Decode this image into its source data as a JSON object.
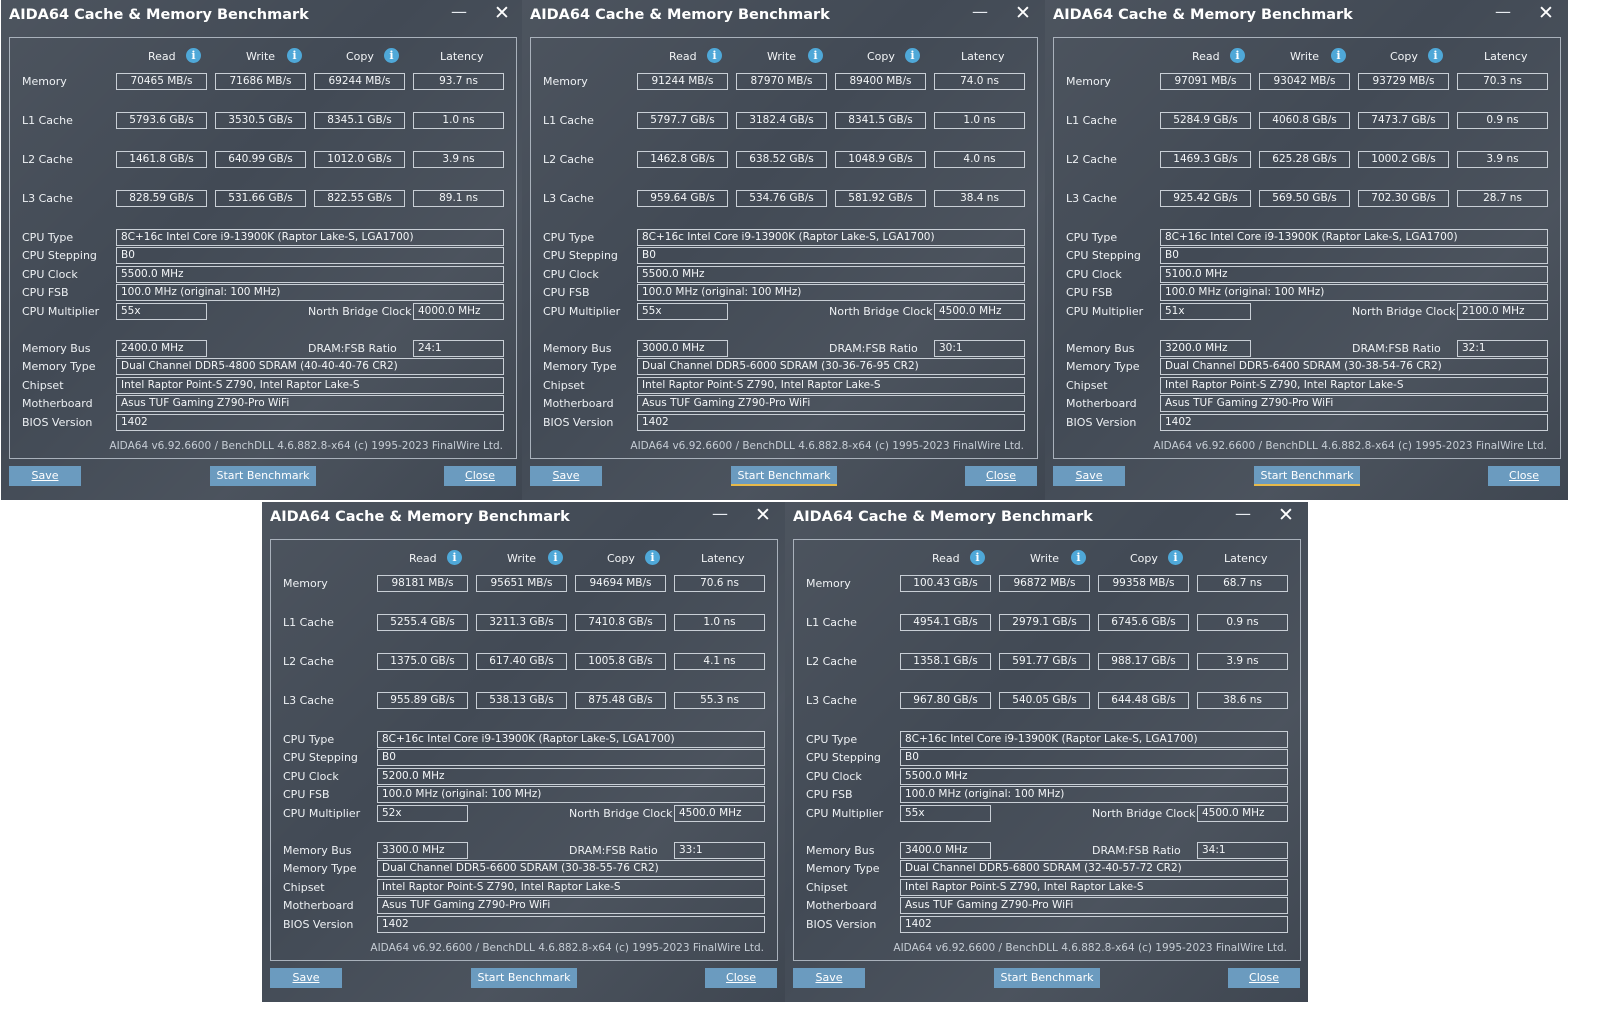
{
  "labels": {
    "title": "AIDA64 Cache & Memory Benchmark",
    "read": "Read",
    "write": "Write",
    "copy": "Copy",
    "latency": "Latency",
    "info_glyph": "i",
    "memory": "Memory",
    "l1": "L1 Cache",
    "l2": "L2 Cache",
    "l3": "L3 Cache",
    "cpu_type": "CPU Type",
    "cpu_stepping": "CPU Stepping",
    "cpu_clock": "CPU Clock",
    "cpu_fsb": "CPU FSB",
    "cpu_multiplier": "CPU Multiplier",
    "nb_clock": "North Bridge Clock",
    "memory_bus": "Memory Bus",
    "dram_fsb": "DRAM:FSB Ratio",
    "memory_type": "Memory Type",
    "chipset": "Chipset",
    "motherboard": "Motherboard",
    "bios": "BIOS Version",
    "footer": "AIDA64 v6.92.6600 / BenchDLL 4.6.882.8-x64  (c) 1995-2023 FinalWire Ltd.",
    "save": "Save",
    "start": "Start Benchmark",
    "close": "Close",
    "minimize_glyph": "—",
    "close_glyph": "✕"
  },
  "windows": [
    {
      "rows": [
        [
          "70465 MB/s",
          "71686 MB/s",
          "69244 MB/s",
          "93.7 ns"
        ],
        [
          "5793.6 GB/s",
          "3530.5 GB/s",
          "8345.1 GB/s",
          "1.0 ns"
        ],
        [
          "1461.8 GB/s",
          "640.99 GB/s",
          "1012.0 GB/s",
          "3.9 ns"
        ],
        [
          "828.59 GB/s",
          "531.66 GB/s",
          "822.55 GB/s",
          "89.1 ns"
        ]
      ],
      "cpu_type": "8C+16c Intel Core i9-13900K  (Raptor Lake-S, LGA1700)",
      "cpu_stepping": "B0",
      "cpu_clock": "5500.0 MHz",
      "cpu_fsb": "100.0 MHz  (original: 100 MHz)",
      "cpu_multiplier": "55x",
      "nb_clock": "4000.0 MHz",
      "memory_bus": "2400.0 MHz",
      "dram_fsb": "24:1",
      "memory_type": "Dual Channel DDR5-4800 SDRAM  (40-40-40-76 CR2)",
      "chipset": "Intel Raptor Point-S Z790, Intel Raptor Lake-S",
      "motherboard": "Asus TUF Gaming Z790-Pro WiFi",
      "bios": "1402"
    },
    {
      "rows": [
        [
          "91244 MB/s",
          "87970 MB/s",
          "89400 MB/s",
          "74.0 ns"
        ],
        [
          "5797.7 GB/s",
          "3182.4 GB/s",
          "8341.5 GB/s",
          "1.0 ns"
        ],
        [
          "1462.8 GB/s",
          "638.52 GB/s",
          "1048.9 GB/s",
          "4.0 ns"
        ],
        [
          "959.64 GB/s",
          "534.76 GB/s",
          "581.92 GB/s",
          "38.4 ns"
        ]
      ],
      "cpu_type": "8C+16c Intel Core i9-13900K  (Raptor Lake-S, LGA1700)",
      "cpu_stepping": "B0",
      "cpu_clock": "5500.0 MHz",
      "cpu_fsb": "100.0 MHz  (original: 100 MHz)",
      "cpu_multiplier": "55x",
      "nb_clock": "4500.0 MHz",
      "memory_bus": "3000.0 MHz",
      "dram_fsb": "30:1",
      "memory_type": "Dual Channel DDR5-6000 SDRAM  (30-36-76-95 CR2)",
      "chipset": "Intel Raptor Point-S Z790, Intel Raptor Lake-S",
      "motherboard": "Asus TUF Gaming Z790-Pro WiFi",
      "bios": "1402"
    },
    {
      "rows": [
        [
          "97091 MB/s",
          "93042 MB/s",
          "93729 MB/s",
          "70.3 ns"
        ],
        [
          "5284.9 GB/s",
          "4060.8 GB/s",
          "7473.7 GB/s",
          "0.9 ns"
        ],
        [
          "1469.3 GB/s",
          "625.28 GB/s",
          "1000.2 GB/s",
          "3.9 ns"
        ],
        [
          "925.42 GB/s",
          "569.50 GB/s",
          "702.30 GB/s",
          "28.7 ns"
        ]
      ],
      "cpu_type": "8C+16c Intel Core i9-13900K  (Raptor Lake-S, LGA1700)",
      "cpu_stepping": "B0",
      "cpu_clock": "5100.0 MHz",
      "cpu_fsb": "100.0 MHz  (original: 100 MHz)",
      "cpu_multiplier": "51x",
      "nb_clock": "2100.0 MHz",
      "memory_bus": "3200.0 MHz",
      "dram_fsb": "32:1",
      "memory_type": "Dual Channel DDR5-6400 SDRAM  (30-38-54-76 CR2)",
      "chipset": "Intel Raptor Point-S Z790, Intel Raptor Lake-S",
      "motherboard": "Asus TUF Gaming Z790-Pro WiFi",
      "bios": "1402"
    },
    {
      "rows": [
        [
          "98181 MB/s",
          "95651 MB/s",
          "94694 MB/s",
          "70.6 ns"
        ],
        [
          "5255.4 GB/s",
          "3211.3 GB/s",
          "7410.8 GB/s",
          "1.0 ns"
        ],
        [
          "1375.0 GB/s",
          "617.40 GB/s",
          "1005.8 GB/s",
          "4.1 ns"
        ],
        [
          "955.89 GB/s",
          "538.13 GB/s",
          "875.48 GB/s",
          "55.3 ns"
        ]
      ],
      "cpu_type": "8C+16c Intel Core i9-13900K  (Raptor Lake-S, LGA1700)",
      "cpu_stepping": "B0",
      "cpu_clock": "5200.0 MHz",
      "cpu_fsb": "100.0 MHz  (original: 100 MHz)",
      "cpu_multiplier": "52x",
      "nb_clock": "4500.0 MHz",
      "memory_bus": "3300.0 MHz",
      "dram_fsb": "33:1",
      "memory_type": "Dual Channel DDR5-6600 SDRAM  (30-38-55-76 CR2)",
      "chipset": "Intel Raptor Point-S Z790, Intel Raptor Lake-S",
      "motherboard": "Asus TUF Gaming Z790-Pro WiFi",
      "bios": "1402"
    },
    {
      "rows": [
        [
          "100.43 GB/s",
          "96872 MB/s",
          "99358 MB/s",
          "68.7 ns"
        ],
        [
          "4954.1 GB/s",
          "2979.1 GB/s",
          "6745.6 GB/s",
          "0.9 ns"
        ],
        [
          "1358.1 GB/s",
          "591.77 GB/s",
          "988.17 GB/s",
          "3.9 ns"
        ],
        [
          "967.80 GB/s",
          "540.05 GB/s",
          "644.48 GB/s",
          "38.6 ns"
        ]
      ],
      "cpu_type": "8C+16c Intel Core i9-13900K  (Raptor Lake-S, LGA1700)",
      "cpu_stepping": "B0",
      "cpu_clock": "5500.0 MHz",
      "cpu_fsb": "100.0 MHz  (original: 100 MHz)",
      "cpu_multiplier": "55x",
      "nb_clock": "4500.0 MHz",
      "memory_bus": "3400.0 MHz",
      "dram_fsb": "34:1",
      "memory_type": "Dual Channel DDR5-6800 SDRAM  (32-40-57-72 CR2)",
      "chipset": "Intel Raptor Point-S Z790, Intel Raptor Lake-S",
      "motherboard": "Asus TUF Gaming Z790-Pro WiFi",
      "bios": "1402"
    }
  ]
}
